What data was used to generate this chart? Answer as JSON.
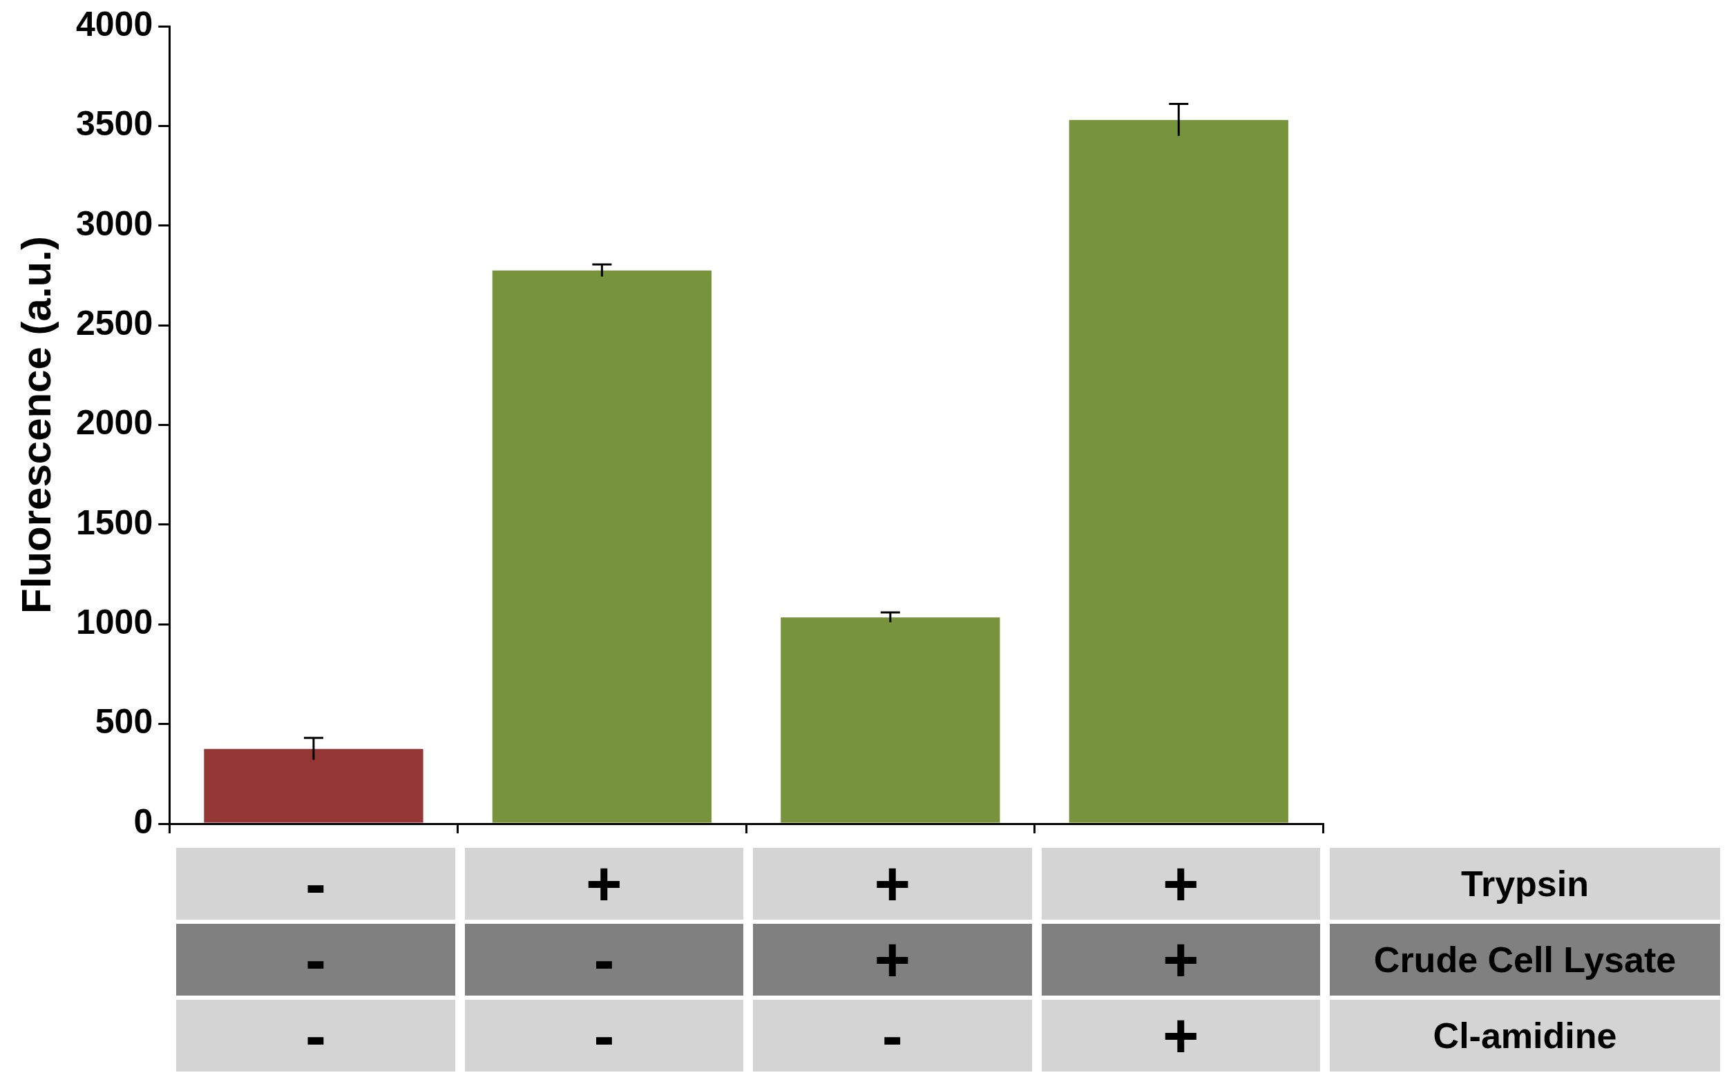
{
  "chart_data": {
    "type": "bar",
    "ylabel": "Fluorescence (a.u.)",
    "categories": [
      null,
      null,
      null,
      null
    ],
    "values": [
      375,
      2775,
      1035,
      3530
    ],
    "errors": [
      55,
      30,
      25,
      80
    ],
    "colors": [
      "#943634",
      "#77933c",
      "#77933c",
      "#77933c"
    ],
    "ylim": [
      0,
      4000
    ],
    "yticks": [
      0,
      500,
      1000,
      1500,
      2000,
      2500,
      3000,
      3500,
      4000
    ],
    "grid": false,
    "legend": false,
    "annotations": [
      "-",
      "+",
      "+",
      "+",
      "Trypsin",
      "-",
      "-",
      "+",
      "+",
      "Crude Cell Lysate",
      "-",
      "-",
      "-",
      "+",
      "Cl-amidine"
    ]
  }
}
